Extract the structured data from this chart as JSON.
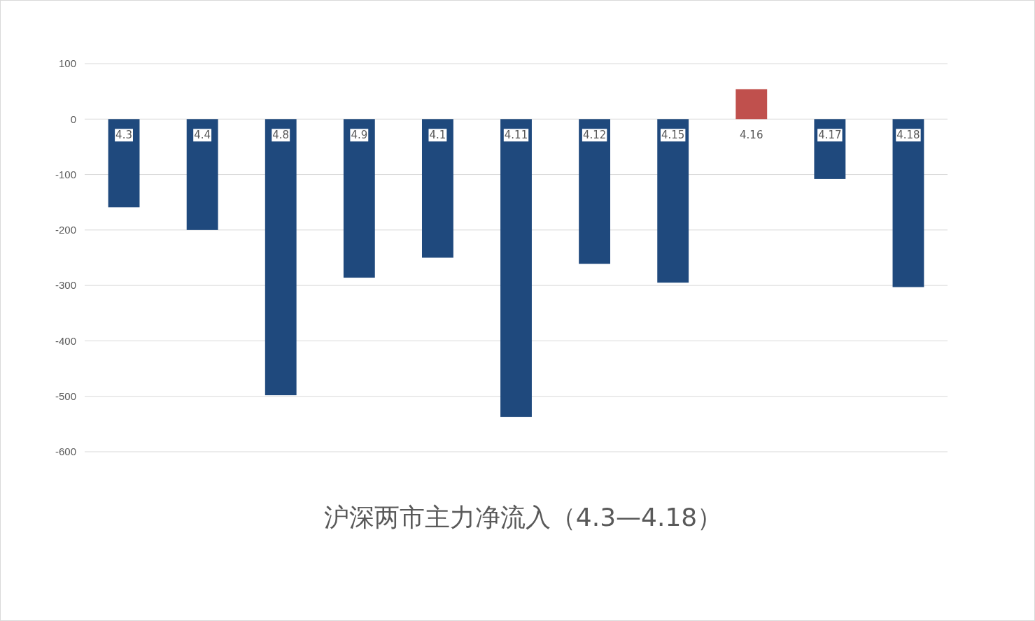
{
  "chart_data": {
    "type": "bar",
    "title": "沪深两市主力净流入（4.3—4.18）",
    "categories": [
      "4.3",
      "4.4",
      "4.8",
      "4.9",
      "4.1",
      "4.11",
      "4.12",
      "4.15",
      "4.16",
      "4.17",
      "4.18"
    ],
    "values": [
      -159,
      -200,
      -498,
      -286,
      -250,
      -537,
      -261,
      -295,
      54,
      -108,
      -303
    ],
    "colors": [
      "#1f497d",
      "#1f497d",
      "#1f497d",
      "#1f497d",
      "#1f497d",
      "#1f497d",
      "#1f497d",
      "#1f497d",
      "#c0504d",
      "#1f497d",
      "#1f497d"
    ],
    "ylim": [
      -600,
      100
    ],
    "yticks": [
      -600,
      -500,
      -400,
      -300,
      -200,
      -100,
      0,
      100
    ],
    "grid": "y"
  }
}
